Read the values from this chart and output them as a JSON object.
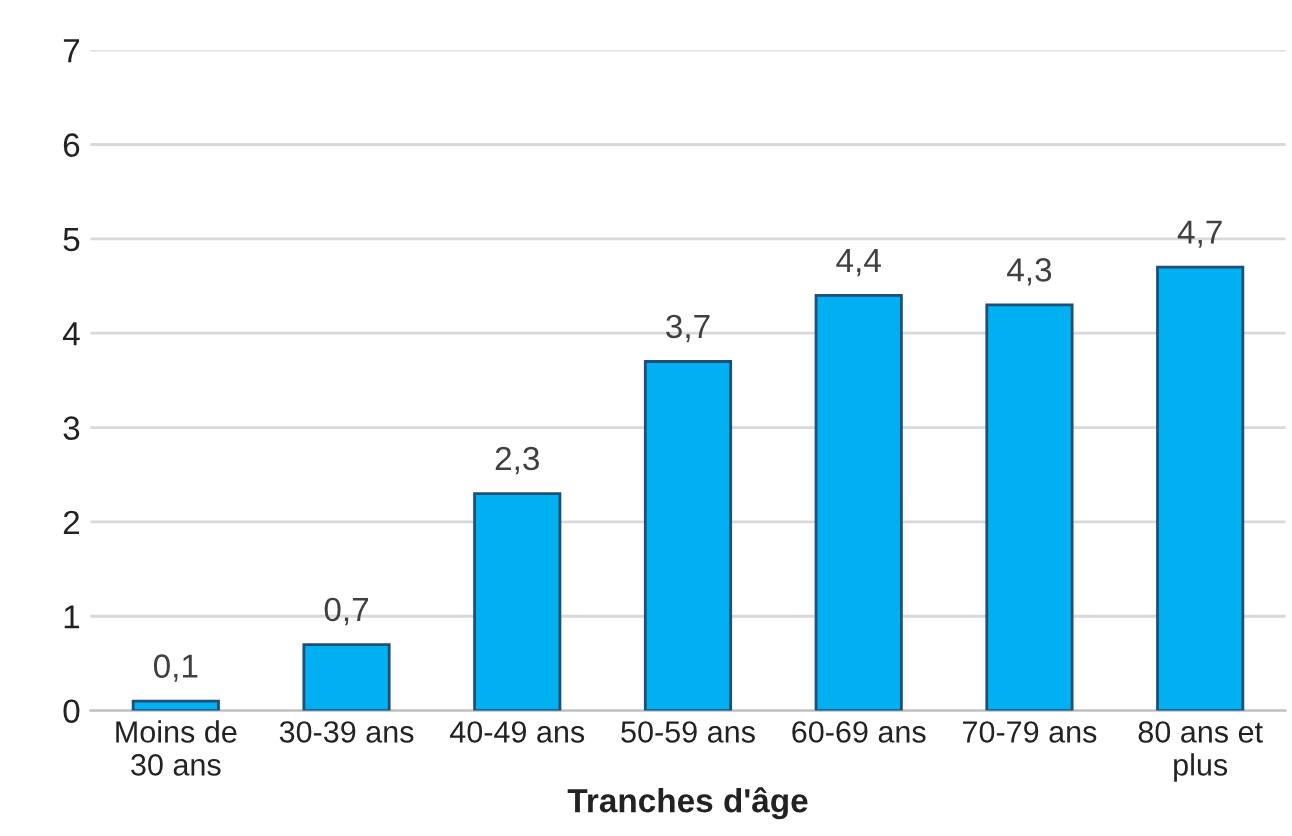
{
  "chart_data": {
    "type": "bar",
    "xlabel": "Tranches d'âge",
    "categories": [
      "Moins de\n30 ans",
      "30-39 ans",
      "40-49 ans",
      "50-59 ans",
      "60-69 ans",
      "70-79 ans",
      "80 ans et\nplus"
    ],
    "values": [
      0.1,
      0.7,
      2.3,
      3.7,
      4.4,
      4.3,
      4.7
    ],
    "value_labels": [
      "0,1",
      "0,7",
      "2,3",
      "3,7",
      "4,4",
      "4,3",
      "4,7"
    ],
    "color": "#00b0f0",
    "ylim": [
      0,
      7
    ],
    "yticks": [
      0,
      1,
      2,
      3,
      4,
      5,
      6,
      7
    ],
    "grid": "y"
  }
}
